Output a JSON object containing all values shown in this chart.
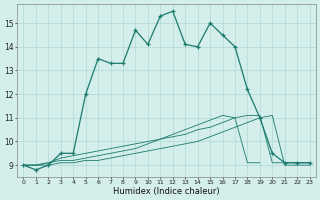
{
  "xlabel": "Humidex (Indice chaleur)",
  "hours": [
    0,
    1,
    2,
    3,
    4,
    5,
    6,
    7,
    8,
    9,
    10,
    11,
    12,
    13,
    14,
    15,
    16,
    17,
    18,
    19,
    20,
    21,
    22,
    23
  ],
  "line_main": [
    9.0,
    8.8,
    9.0,
    9.5,
    9.5,
    12.0,
    13.5,
    13.3,
    13.3,
    14.7,
    14.1,
    15.3,
    15.5,
    14.1,
    14.0,
    15.0,
    14.5,
    14.0,
    12.2,
    11.0,
    9.5,
    9.1,
    9.1,
    9.1
  ],
  "line_a": [
    9.0,
    9.0,
    9.0,
    9.1,
    9.1,
    9.2,
    9.2,
    9.3,
    9.4,
    9.5,
    9.6,
    9.7,
    9.8,
    9.9,
    10.0,
    10.2,
    10.4,
    10.6,
    10.8,
    11.0,
    11.1,
    9.0,
    9.0,
    9.0
  ],
  "line_b": [
    9.0,
    9.0,
    9.1,
    9.2,
    9.2,
    9.3,
    9.4,
    9.5,
    9.6,
    9.7,
    9.9,
    10.1,
    10.3,
    10.5,
    10.7,
    10.9,
    11.1,
    11.0,
    9.1,
    9.1,
    null,
    null,
    null,
    null
  ],
  "line_c": [
    9.0,
    9.0,
    9.1,
    9.3,
    9.4,
    9.5,
    9.6,
    9.7,
    9.8,
    9.9,
    10.0,
    10.1,
    10.2,
    10.3,
    10.5,
    10.6,
    10.8,
    11.0,
    11.1,
    11.1,
    9.1,
    9.1,
    9.1,
    9.1
  ],
  "color": "#1a7a6e",
  "bg_color": "#d4eeeb",
  "grid_color": "#b0d8d4",
  "ylim": [
    8.5,
    15.8
  ],
  "xlim": [
    -0.5,
    23.5
  ],
  "yticks": [
    9,
    10,
    11,
    12,
    13,
    14,
    15
  ],
  "xticks": [
    0,
    1,
    2,
    3,
    4,
    5,
    6,
    7,
    8,
    9,
    10,
    11,
    12,
    13,
    14,
    15,
    16,
    17,
    18,
    19,
    20,
    21,
    22,
    23
  ]
}
